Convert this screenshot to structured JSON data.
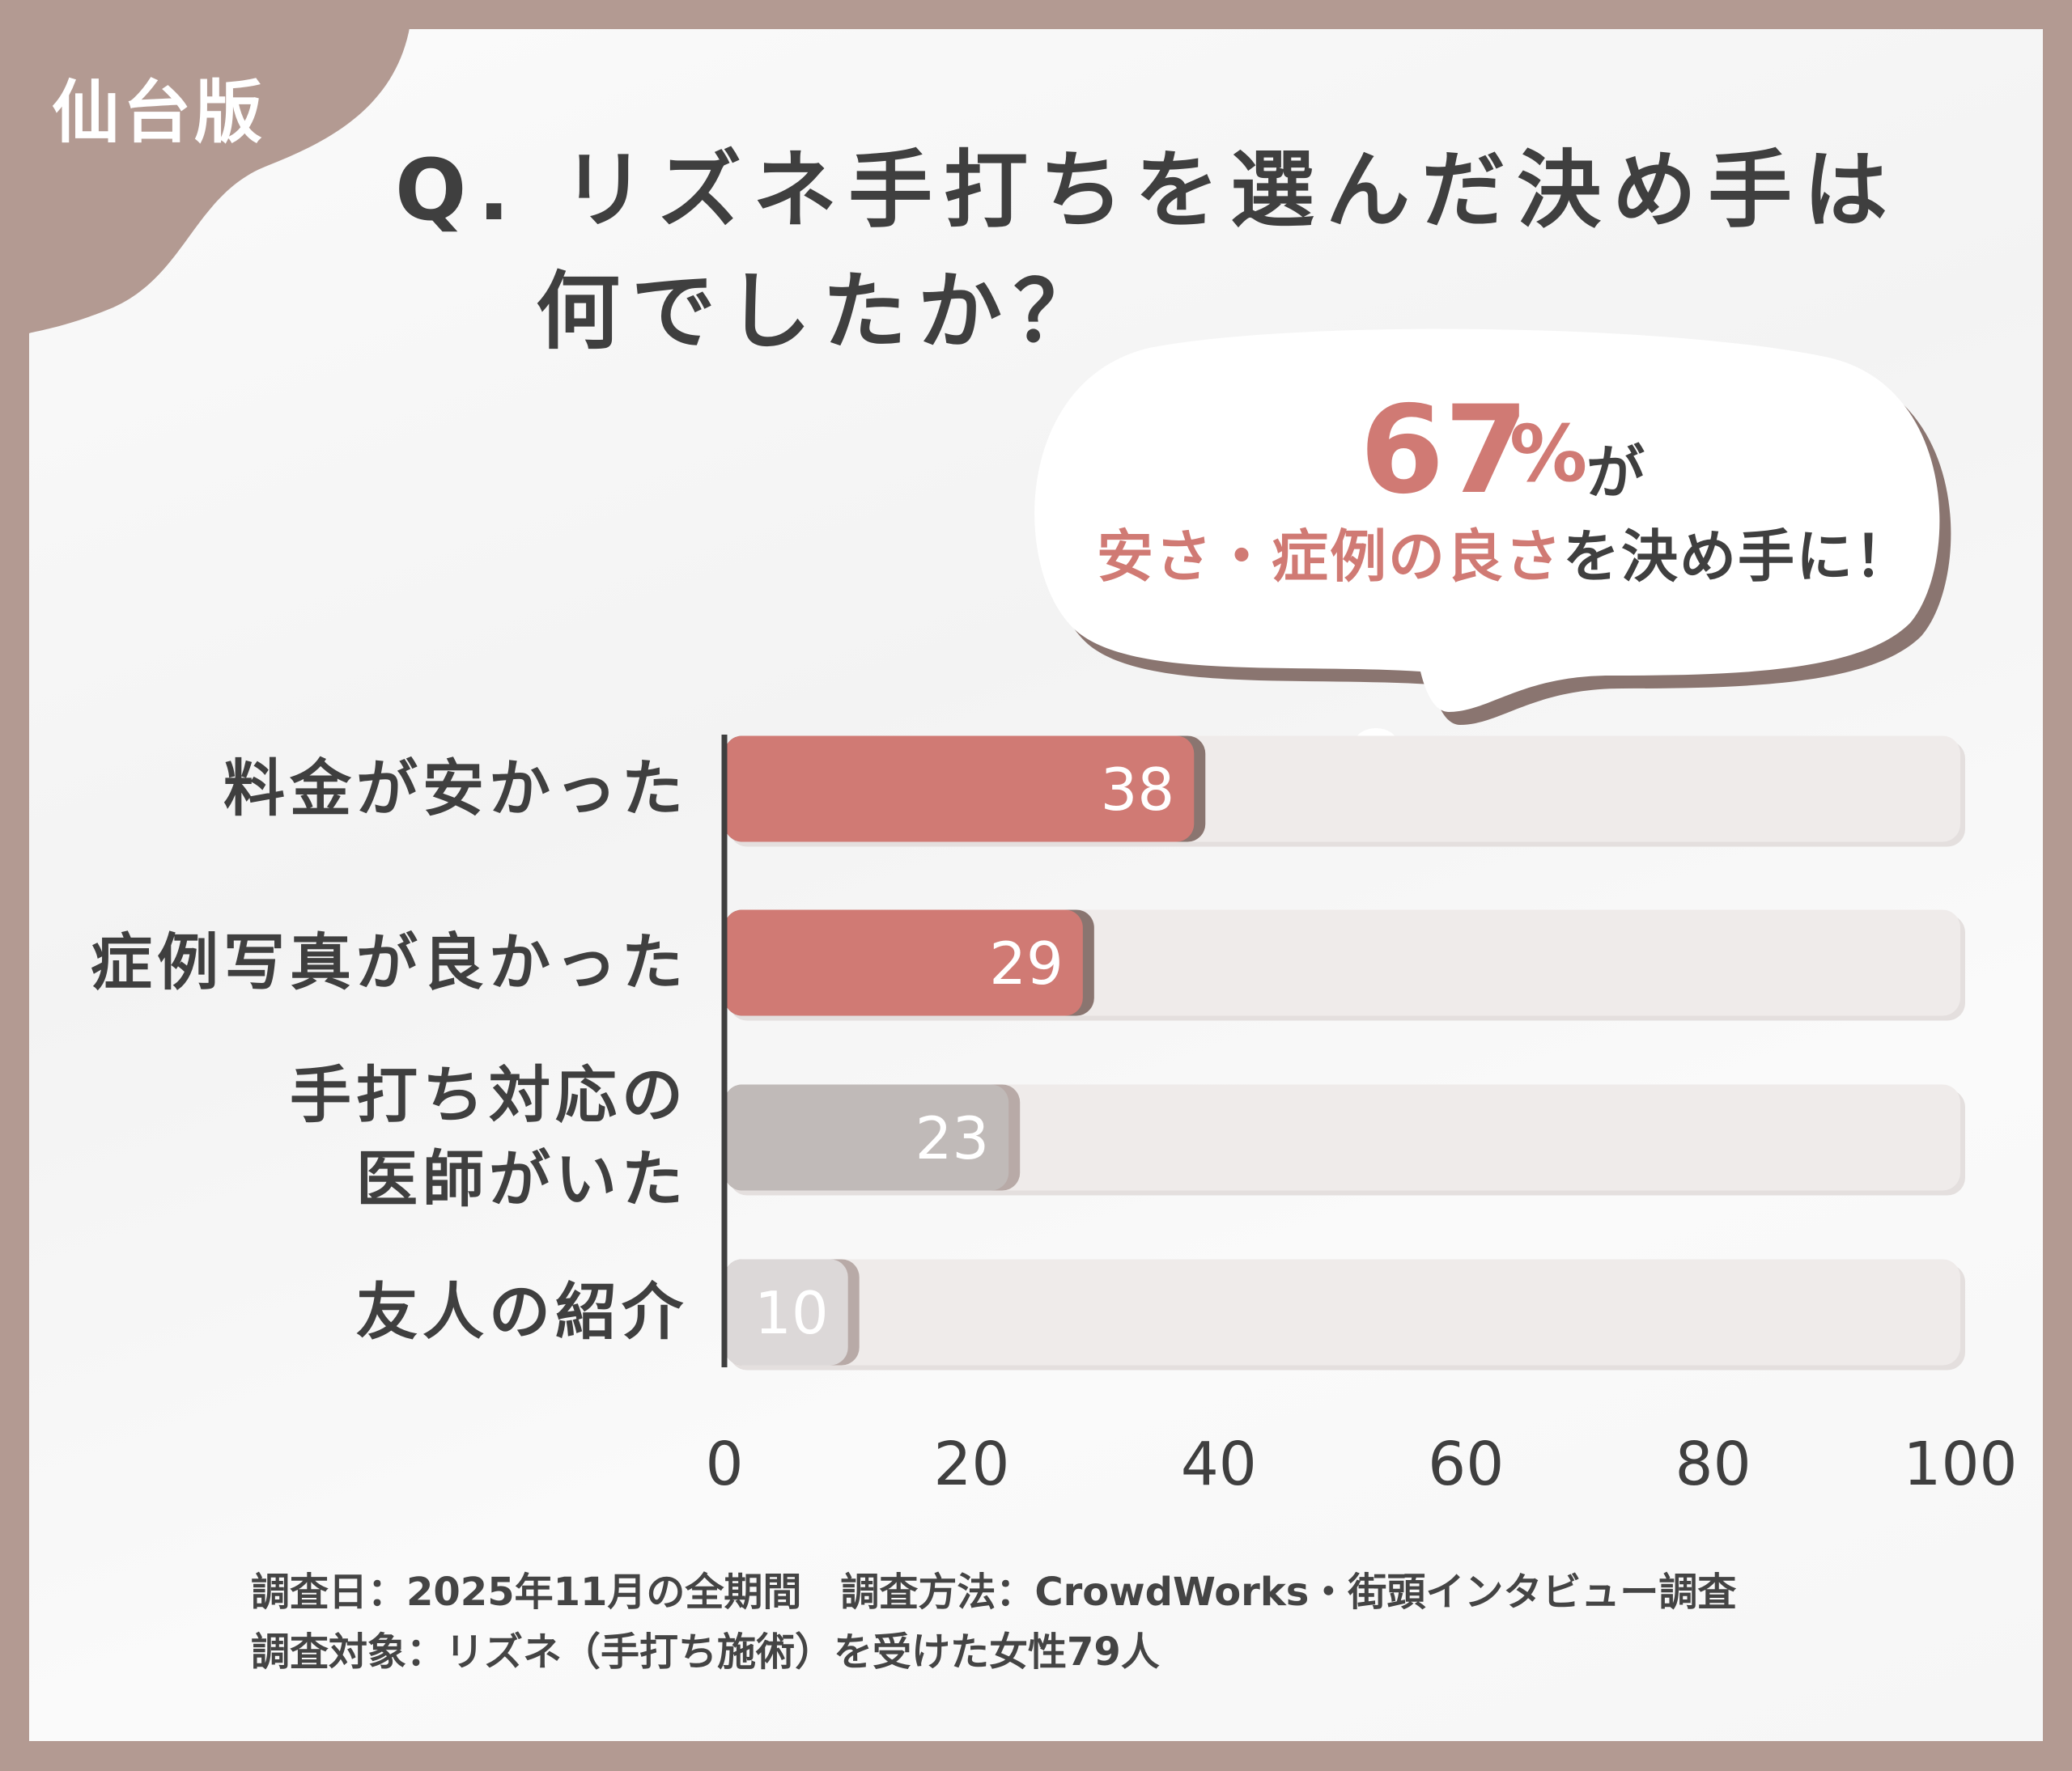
{
  "tag": "仙台版",
  "title": {
    "line1": "Q. リズネ手打ちを選んだ決め手は",
    "line2": "何でしたか？"
  },
  "highlight": {
    "number": "67",
    "unit": "%",
    "particle": "が",
    "emphasis": "安さ・症例の良さ",
    "rest": "を決め手に！"
  },
  "colors": {
    "frame": "#b39a92",
    "accent": "#d07a74",
    "gray_bar": "#c0bab8",
    "light_bar": "#dcd8d8",
    "track": "#efebea",
    "shadow": "#8a7570"
  },
  "chart_data": {
    "type": "bar",
    "orientation": "horizontal",
    "categories": [
      "料金が安かった",
      "症例写真が良かった",
      "手打ち対応の\n医師がいた",
      "友人の紹介"
    ],
    "values": [
      38,
      29,
      23,
      10
    ],
    "xlim": [
      0,
      100
    ],
    "xticks": [
      "0",
      "20",
      "40",
      "60",
      "80",
      "100"
    ],
    "grid": false
  },
  "footer": {
    "line1": "調査日：2025年11月の全期間　調査方法：CrowdWorks・街頭インタビュー調査",
    "line2": "調査対象：リズネ（手打ち施術）を受けた女性79人"
  }
}
